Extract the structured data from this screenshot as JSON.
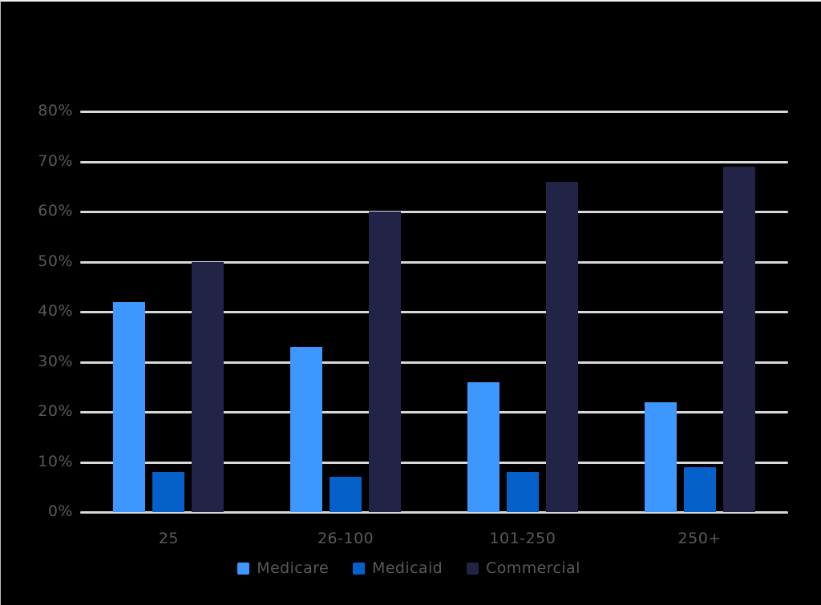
{
  "chart": {
    "background_color": "#000000",
    "grid_color": "#d9d9d9",
    "axis_text_color": "#58595b",
    "legend_text_color": "#58595b"
  },
  "chart_data": {
    "type": "bar",
    "title": "",
    "categories": [
      "25",
      "26-100",
      "101-250",
      "250+"
    ],
    "series": [
      {
        "name": "Medicare",
        "color": "#3e96ff",
        "values": [
          42,
          33,
          26,
          22
        ]
      },
      {
        "name": "Medicaid",
        "color": "#0560c9",
        "values": [
          8,
          7,
          8,
          9
        ]
      },
      {
        "name": "Commercial",
        "color": "#212447",
        "values": [
          50,
          60,
          66,
          69
        ]
      }
    ],
    "xlabel": "",
    "ylabel": "",
    "ylim": [
      0,
      80
    ],
    "ytick_step": 10,
    "ytick_suffix": "%",
    "y_tick_labels": [
      "0%",
      "10%",
      "20%",
      "30%",
      "40%",
      "50%",
      "60%",
      "70%",
      "80%"
    ],
    "grid": true,
    "legend_position": "bottom"
  }
}
